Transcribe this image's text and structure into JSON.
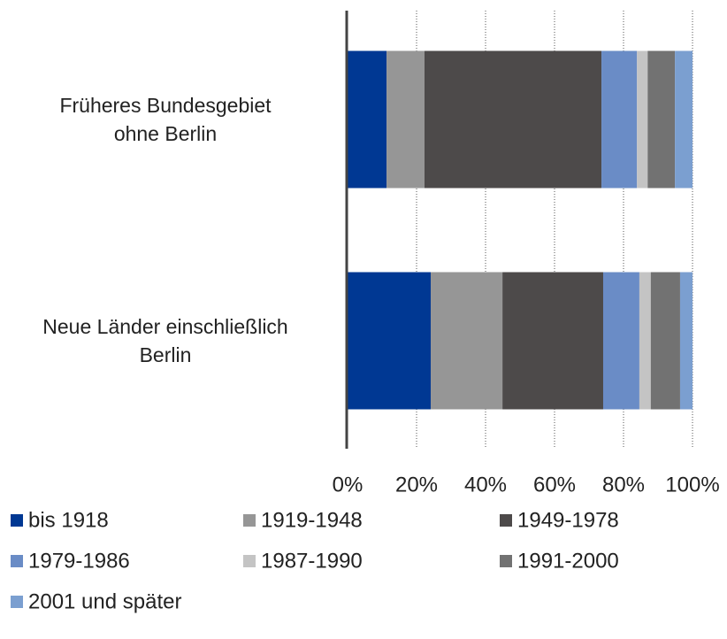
{
  "chart_data": {
    "type": "stacked_barh",
    "categories": [
      "Früheres Bundesgebiet\nohne Berlin",
      "Neue Länder einschließlich\nBerlin"
    ],
    "series": [
      {
        "name": "bis 1918",
        "color": "#003893",
        "values": [
          11.3,
          24.1
        ]
      },
      {
        "name": "1919-1948",
        "color": "#969696",
        "values": [
          11.0,
          20.8
        ]
      },
      {
        "name": "1949-1978",
        "color": "#4d4a4a",
        "values": [
          51.3,
          29.2
        ]
      },
      {
        "name": "1979-1986",
        "color": "#6a8cc6",
        "values": [
          10.3,
          10.5
        ]
      },
      {
        "name": "1987-1990",
        "color": "#c4c4c4",
        "values": [
          3.1,
          3.3
        ]
      },
      {
        "name": "1991-2000",
        "color": "#727272",
        "values": [
          7.9,
          8.5
        ]
      },
      {
        "name": "2001 und später",
        "color": "#7b9fd0",
        "values": [
          5.1,
          3.6
        ]
      }
    ],
    "xlim": [
      0,
      100
    ],
    "xticks": [
      {
        "value": 0,
        "label": "0%"
      },
      {
        "value": 20,
        "label": "20%"
      },
      {
        "value": 40,
        "label": "40%"
      },
      {
        "value": 60,
        "label": "60%"
      },
      {
        "value": 80,
        "label": "80%"
      },
      {
        "value": 100,
        "label": "100%"
      }
    ],
    "grid": true,
    "legend": "bottom"
  }
}
